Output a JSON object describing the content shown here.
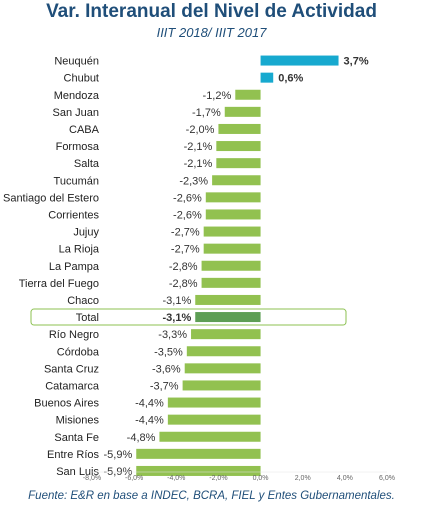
{
  "header": {
    "title": "Var. Interanual del Nivel de Actividad",
    "subtitle": "IIIT 2018/ IIIT 2017"
  },
  "footer": {
    "source": "Fuente: E&R en base a INDEC, BCRA, FIEL y Entes Gubernamentales."
  },
  "colors": {
    "positive": "#17a9cf",
    "negative": "#92c150",
    "highlight": "#5d9e54",
    "highlight_frame": "#8cc152",
    "positive_label": "#17a9cf",
    "negative_label": "#333333"
  },
  "chart_data": {
    "type": "bar",
    "orientation": "horizontal",
    "title": "Var. Interanual del Nivel de Actividad",
    "subtitle": "IIIT 2018/ IIIT 2017",
    "xlim": [
      -8.0,
      6.0
    ],
    "x_ticks": [
      -8.0,
      -6.0,
      -4.0,
      -2.0,
      0.0,
      2.0,
      4.0,
      6.0
    ],
    "x_tick_labels": [
      "-8,0%",
      "-6,0%",
      "-4,0%",
      "-2,0%",
      "0,0%",
      "2,0%",
      "4,0%",
      "6,0%"
    ],
    "grid": false,
    "categories": [
      "Neuquén",
      "Chubut",
      "Mendoza",
      "San Juan",
      "CABA",
      "Formosa",
      "Salta",
      "Tucumán",
      "Santiago del Estero",
      "Corrientes",
      "Jujuy",
      "La Rioja",
      "La Pampa",
      "Tierra del Fuego",
      "Chaco",
      "Total",
      "Río Negro",
      "Córdoba",
      "Santa Cruz",
      "Catamarca",
      "Buenos Aires",
      "Misiones",
      "Santa Fe",
      "Entre Ríos",
      "San Luis"
    ],
    "values": [
      3.7,
      0.6,
      -1.2,
      -1.7,
      -2.0,
      -2.1,
      -2.1,
      -2.3,
      -2.6,
      -2.6,
      -2.7,
      -2.7,
      -2.8,
      -2.8,
      -3.1,
      -3.1,
      -3.3,
      -3.5,
      -3.6,
      -3.7,
      -4.4,
      -4.4,
      -4.8,
      -5.9,
      -5.9
    ],
    "value_labels": [
      "3,7%",
      "0,6%",
      "-1,2%",
      "-1,7%",
      "-2,0%",
      "-2,1%",
      "-2,1%",
      "-2,3%",
      "-2,6%",
      "-2,6%",
      "-2,7%",
      "-2,7%",
      "-2,8%",
      "-2,8%",
      "-3,1%",
      "-3,1%",
      "-3,3%",
      "-3,5%",
      "-3,6%",
      "-3,7%",
      "-4,4%",
      "-4,4%",
      "-4,8%",
      "-5,9%",
      "-5,9%"
    ],
    "highlight_category": "Total"
  }
}
